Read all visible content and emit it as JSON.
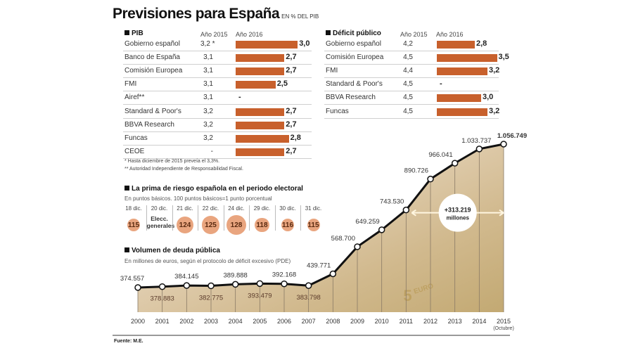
{
  "header": {
    "title": "Previsiones para España",
    "subtitle": "EN % DEL PIB"
  },
  "pib": {
    "heading": "PIB",
    "col_2015": "Año 2015",
    "col_2016": "Año 2016",
    "rows": [
      {
        "name": "Gobierno español",
        "v2015": "3,2 *",
        "v2016": "3,0",
        "value": 3.0
      },
      {
        "name": "Banco de España",
        "v2015": "3,1",
        "v2016": "2,7",
        "value": 2.7
      },
      {
        "name": "Comisión Europea",
        "v2015": "3,1",
        "v2016": "2,7",
        "value": 2.7
      },
      {
        "name": "FMI",
        "v2015": "3,1",
        "v2016": "2,5",
        "value": 2.5
      },
      {
        "name": "Airef**",
        "v2015": "3,1",
        "v2016": "-",
        "value": null
      },
      {
        "name": "Standard & Poor's",
        "v2015": "3,2",
        "v2016": "2,7",
        "value": 2.7
      },
      {
        "name": "BBVA Research",
        "v2015": "3,2",
        "v2016": "2,7",
        "value": 2.7
      },
      {
        "name": "Funcas",
        "v2015": "3,2",
        "v2016": "2,8",
        "value": 2.8
      },
      {
        "name": "CEOE",
        "v2015": "-",
        "v2016": "2,7",
        "value": 2.7
      }
    ],
    "note1": "* Hasta diciembre de 2015 preveía el 3,3%.",
    "note2": "** Autoridad Independiente de Responsabilidad Fiscal."
  },
  "deficit": {
    "heading": "Déficit público",
    "col_2015": "Año 2015",
    "col_2016": "Año 2016",
    "rows": [
      {
        "name": "Gobierno español",
        "v2015": "4,2",
        "v2016": "2,8",
        "value": 2.8
      },
      {
        "name": "Comisión Europea",
        "v2015": "4,5",
        "v2016": "3,5",
        "value": 3.5
      },
      {
        "name": "FMI",
        "v2015": "4,4",
        "v2016": "3,2",
        "value": 3.2
      },
      {
        "name": "Standard & Poor's",
        "v2015": "4,5",
        "v2016": "-",
        "value": null
      },
      {
        "name": "BBVA Research",
        "v2015": "4,5",
        "v2016": "3,0",
        "value": 3.0
      },
      {
        "name": "Funcas",
        "v2015": "4,5",
        "v2016": "3,2",
        "value": 3.2
      }
    ]
  },
  "prima": {
    "heading": "La prima de riesgo española en el periodo electoral",
    "subtitle": "En puntos básicos. 100 puntos básicos=1 punto porcentual",
    "items": [
      {
        "date": "18 dic.",
        "value": "115"
      },
      {
        "date": "20 dic.",
        "value": null,
        "label1": "Elecc.",
        "label2": "generales"
      },
      {
        "date": "21 dic.",
        "value": "124"
      },
      {
        "date": "22 dic.",
        "value": "125"
      },
      {
        "date": "24 dic.",
        "value": "128"
      },
      {
        "date": "29 dic.",
        "value": "118"
      },
      {
        "date": "30 dic.",
        "value": "116"
      },
      {
        "date": "31 dic.",
        "value": "115"
      }
    ]
  },
  "deuda": {
    "heading": "Volumen de deuda pública",
    "subtitle": "En millones de euros, según el protocolo de déficit excesivo (PDE)",
    "annotation_value": "+313.219",
    "annotation_unit": "millones",
    "last_sublabel": "(Octubre)"
  },
  "footer": {
    "source": "Fuente: M.E."
  },
  "colors": {
    "bar": "#c8602c",
    "circle": "#e9a57f",
    "line": "#111111",
    "bg_photo": "#e8d6b8"
  },
  "chart_data": [
    {
      "type": "bar",
      "title": "PIB",
      "subtitle": "EN % DEL PIB",
      "orientation": "horizontal",
      "categories": [
        "Gobierno español",
        "Banco de España",
        "Comisión Europea",
        "FMI",
        "Airef**",
        "Standard & Poor's",
        "BBVA Research",
        "Funcas",
        "CEOE"
      ],
      "series": [
        {
          "name": "Año 2015",
          "values": [
            3.2,
            3.1,
            3.1,
            3.1,
            3.1,
            3.2,
            3.2,
            3.2,
            null
          ]
        },
        {
          "name": "Año 2016",
          "values": [
            3.0,
            2.7,
            2.7,
            2.5,
            null,
            2.7,
            2.7,
            2.8,
            2.7
          ]
        }
      ]
    },
    {
      "type": "bar",
      "title": "Déficit público",
      "orientation": "horizontal",
      "categories": [
        "Gobierno español",
        "Comisión Europea",
        "FMI",
        "Standard & Poor's",
        "BBVA Research",
        "Funcas"
      ],
      "series": [
        {
          "name": "Año 2015",
          "values": [
            4.2,
            4.5,
            4.4,
            4.5,
            4.5,
            4.5
          ]
        },
        {
          "name": "Año 2016",
          "values": [
            2.8,
            3.5,
            3.2,
            null,
            3.0,
            3.2
          ]
        }
      ]
    },
    {
      "type": "scatter",
      "title": "La prima de riesgo española en el periodo electoral",
      "ylabel": "Puntos básicos",
      "categories": [
        "18 dic.",
        "20 dic.",
        "21 dic.",
        "22 dic.",
        "24 dic.",
        "29 dic.",
        "30 dic.",
        "31 dic."
      ],
      "values": [
        115,
        null,
        124,
        125,
        128,
        118,
        116,
        115
      ]
    },
    {
      "type": "line",
      "title": "Volumen de deuda pública",
      "ylabel": "Millones de euros",
      "x": [
        "2000",
        "2001",
        "2002",
        "2003",
        "2004",
        "2005",
        "2006",
        "2007",
        "2008",
        "2009",
        "2010",
        "2011",
        "2012",
        "2013",
        "2014",
        "2015"
      ],
      "values": [
        374557,
        378883,
        384145,
        382775,
        389888,
        393479,
        392168,
        383798,
        439771,
        568700,
        649259,
        743530,
        890726,
        966041,
        1033737,
        1056749
      ],
      "labels": [
        "374.557",
        "378.883",
        "384.145",
        "382.775",
        "389.888",
        "393.479",
        "392.168",
        "383.798",
        "439.771",
        "568.700",
        "649.259",
        "743.530",
        "890.726",
        "966.041",
        "1.033.737",
        "1.056.749"
      ],
      "ylim": [
        340000,
        1080000
      ],
      "grid": false
    }
  ]
}
